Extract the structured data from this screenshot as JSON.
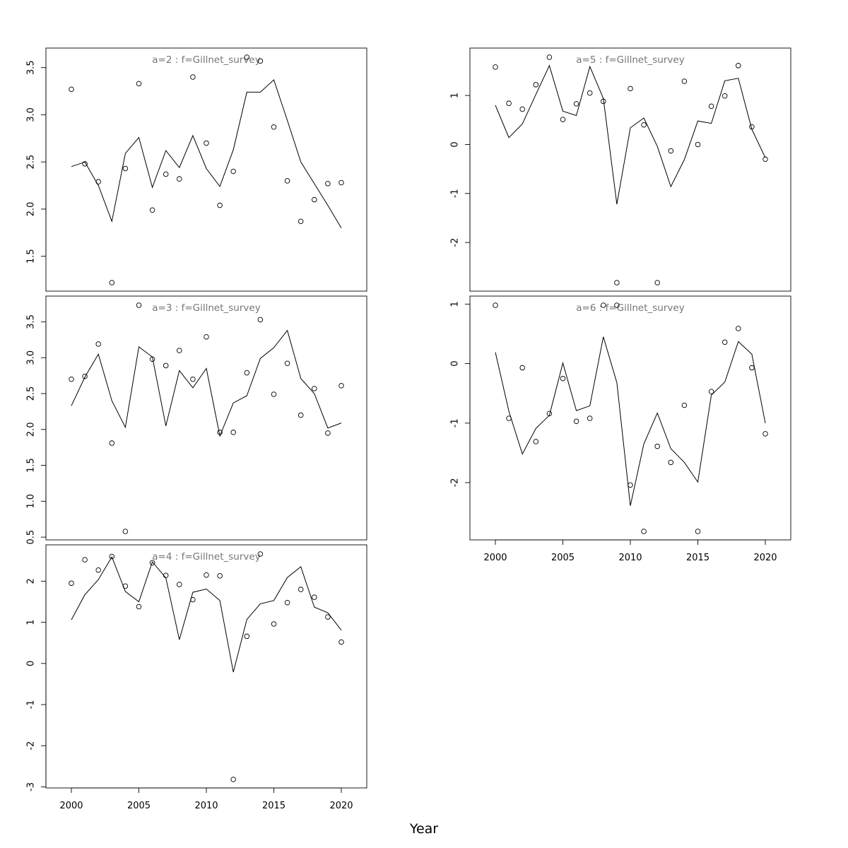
{
  "xlabel": "Year",
  "chart_data": [
    {
      "type": "scatter",
      "title": "a=2  :  f=Gillnet_survey",
      "xlim": [
        2000,
        2020
      ],
      "ylim": [
        1.22,
        3.61
      ],
      "xticks": [],
      "yticks": [
        "1.5",
        "2.0",
        "2.5",
        "3.0",
        "3.5"
      ],
      "series": [
        {
          "kind": "points",
          "x": [
            2000,
            2001,
            2002,
            2003,
            2004,
            2005,
            2006,
            2007,
            2008,
            2009,
            2010,
            2011,
            2012,
            2013,
            2014,
            2015,
            2016,
            2017,
            2018,
            2019,
            2020
          ],
          "values": [
            3.27,
            2.48,
            2.29,
            1.22,
            2.43,
            3.33,
            1.99,
            2.37,
            2.32,
            3.4,
            2.7,
            2.04,
            2.4,
            3.61,
            3.57,
            2.87,
            2.3,
            1.87,
            2.1,
            2.27,
            2.28
          ]
        },
        {
          "kind": "line",
          "x": [
            2000,
            2001,
            2002,
            2003,
            2004,
            2005,
            2006,
            2007,
            2008,
            2009,
            2010,
            2011,
            2012,
            2013,
            2014,
            2015,
            2016,
            2017,
            2018,
            2019,
            2020
          ],
          "values": [
            2.45,
            2.5,
            2.25,
            1.87,
            2.59,
            2.76,
            2.23,
            2.62,
            2.44,
            2.78,
            2.43,
            2.24,
            2.63,
            3.24,
            3.24,
            3.37,
            2.94,
            2.5,
            2.27,
            2.04,
            1.8
          ]
        }
      ]
    },
    {
      "type": "scatter",
      "title": "a=3  :  f=Gillnet_survey",
      "xlim": [
        2000,
        2020
      ],
      "ylim": [
        0.58,
        3.73
      ],
      "xticks": [],
      "yticks": [
        "0.5",
        "1.0",
        "1.5",
        "2.0",
        "2.5",
        "3.0",
        "3.5"
      ],
      "series": [
        {
          "kind": "points",
          "x": [
            2000,
            2001,
            2002,
            2003,
            2004,
            2005,
            2006,
            2007,
            2008,
            2009,
            2010,
            2011,
            2012,
            2013,
            2014,
            2015,
            2016,
            2017,
            2018,
            2019,
            2020
          ],
          "values": [
            2.7,
            2.74,
            3.19,
            1.81,
            0.58,
            3.73,
            2.98,
            2.89,
            3.1,
            2.7,
            3.29,
            1.96,
            1.96,
            2.79,
            3.53,
            2.49,
            2.92,
            2.2,
            2.57,
            1.95,
            2.61
          ]
        },
        {
          "kind": "line",
          "x": [
            2000,
            2001,
            2002,
            2003,
            2004,
            2005,
            2006,
            2007,
            2008,
            2009,
            2010,
            2011,
            2012,
            2013,
            2014,
            2015,
            2016,
            2017,
            2018,
            2019,
            2020
          ],
          "values": [
            2.33,
            2.73,
            3.05,
            2.4,
            2.03,
            3.15,
            3.01,
            2.05,
            2.82,
            2.58,
            2.85,
            1.91,
            2.37,
            2.47,
            2.99,
            3.14,
            3.38,
            2.71,
            2.5,
            2.02,
            2.09
          ]
        }
      ]
    },
    {
      "type": "scatter",
      "title": "a=4  :  f=Gillnet_survey",
      "xlim": [
        2000,
        2020
      ],
      "ylim": [
        -2.82,
        2.66
      ],
      "xticks": [
        "2000",
        "2005",
        "2010",
        "2015",
        "2020"
      ],
      "yticks": [
        "-3",
        "-2",
        "-1",
        "0",
        "1",
        "2"
      ],
      "series": [
        {
          "kind": "points",
          "x": [
            2000,
            2001,
            2002,
            2003,
            2004,
            2005,
            2006,
            2007,
            2008,
            2009,
            2010,
            2011,
            2012,
            2013,
            2014,
            2015,
            2016,
            2017,
            2018,
            2019,
            2020
          ],
          "values": [
            1.95,
            2.52,
            2.27,
            2.6,
            1.88,
            1.38,
            2.45,
            2.14,
            1.92,
            1.55,
            2.15,
            2.13,
            -2.82,
            0.66,
            2.66,
            0.96,
            1.48,
            1.8,
            1.61,
            1.13,
            0.52
          ]
        },
        {
          "kind": "line",
          "x": [
            2000,
            2001,
            2002,
            2003,
            2004,
            2005,
            2006,
            2007,
            2008,
            2009,
            2010,
            2011,
            2012,
            2013,
            2014,
            2015,
            2016,
            2017,
            2018,
            2019,
            2020
          ],
          "values": [
            1.06,
            1.67,
            2.04,
            2.59,
            1.75,
            1.5,
            2.47,
            2.08,
            0.58,
            1.73,
            1.81,
            1.53,
            -0.21,
            1.07,
            1.45,
            1.53,
            2.09,
            2.35,
            1.37,
            1.23,
            0.81
          ]
        }
      ]
    },
    {
      "type": "scatter",
      "title": "a=5  :  f=Gillnet_survey",
      "xlim": [
        2000,
        2020
      ],
      "ylim": [
        -2.82,
        1.78
      ],
      "xticks": [],
      "yticks": [
        "-2",
        "-1",
        "0",
        "1"
      ],
      "series": [
        {
          "kind": "points",
          "x": [
            2000,
            2001,
            2002,
            2003,
            2004,
            2005,
            2006,
            2007,
            2008,
            2009,
            2010,
            2011,
            2012,
            2013,
            2014,
            2015,
            2016,
            2017,
            2018,
            2019,
            2020
          ],
          "values": [
            1.58,
            0.84,
            0.72,
            1.22,
            1.78,
            0.51,
            0.83,
            1.05,
            0.88,
            -2.82,
            1.14,
            0.4,
            -2.82,
            -0.13,
            1.29,
            0.0,
            0.78,
            0.99,
            1.61,
            0.36,
            -0.3
          ]
        },
        {
          "kind": "line",
          "x": [
            2000,
            2001,
            2002,
            2003,
            2004,
            2005,
            2006,
            2007,
            2008,
            2009,
            2010,
            2011,
            2012,
            2013,
            2014,
            2015,
            2016,
            2017,
            2018,
            2019,
            2020
          ],
          "values": [
            0.8,
            0.14,
            0.42,
            1.02,
            1.61,
            0.68,
            0.59,
            1.59,
            0.94,
            -1.22,
            0.34,
            0.54,
            -0.04,
            -0.86,
            -0.31,
            0.48,
            0.43,
            1.3,
            1.35,
            0.31,
            -0.27
          ]
        }
      ]
    },
    {
      "type": "scatter",
      "title": "a=6  :  f=Gillnet_survey",
      "xlim": [
        2000,
        2020
      ],
      "ylim": [
        -2.82,
        0.98
      ],
      "xticks": [
        "2000",
        "2005",
        "2010",
        "2015",
        "2020"
      ],
      "yticks": [
        "-2",
        "-1",
        "0",
        "1"
      ],
      "series": [
        {
          "kind": "points",
          "x": [
            2000,
            2001,
            2002,
            2003,
            2004,
            2005,
            2006,
            2007,
            2008,
            2009,
            2010,
            2011,
            2012,
            2013,
            2014,
            2015,
            2016,
            2017,
            2018,
            2019,
            2020
          ],
          "values": [
            0.98,
            -0.92,
            -0.07,
            -1.31,
            -0.84,
            -0.25,
            -0.97,
            -0.92,
            0.98,
            0.98,
            -2.04,
            -2.82,
            -1.39,
            -1.66,
            -0.7,
            -2.82,
            -0.47,
            0.36,
            0.59,
            -0.07,
            -1.18
          ]
        },
        {
          "kind": "line",
          "x": [
            2000,
            2001,
            2002,
            2003,
            2004,
            2005,
            2006,
            2007,
            2008,
            2009,
            2010,
            2011,
            2012,
            2013,
            2014,
            2015,
            2016,
            2017,
            2018,
            2019,
            2020
          ],
          "values": [
            0.19,
            -0.8,
            -1.52,
            -1.09,
            -0.87,
            0.01,
            -0.79,
            -0.71,
            0.45,
            -0.32,
            -2.39,
            -1.35,
            -0.83,
            -1.43,
            -1.66,
            -1.99,
            -0.53,
            -0.31,
            0.37,
            0.16,
            -1.0
          ]
        }
      ]
    }
  ]
}
